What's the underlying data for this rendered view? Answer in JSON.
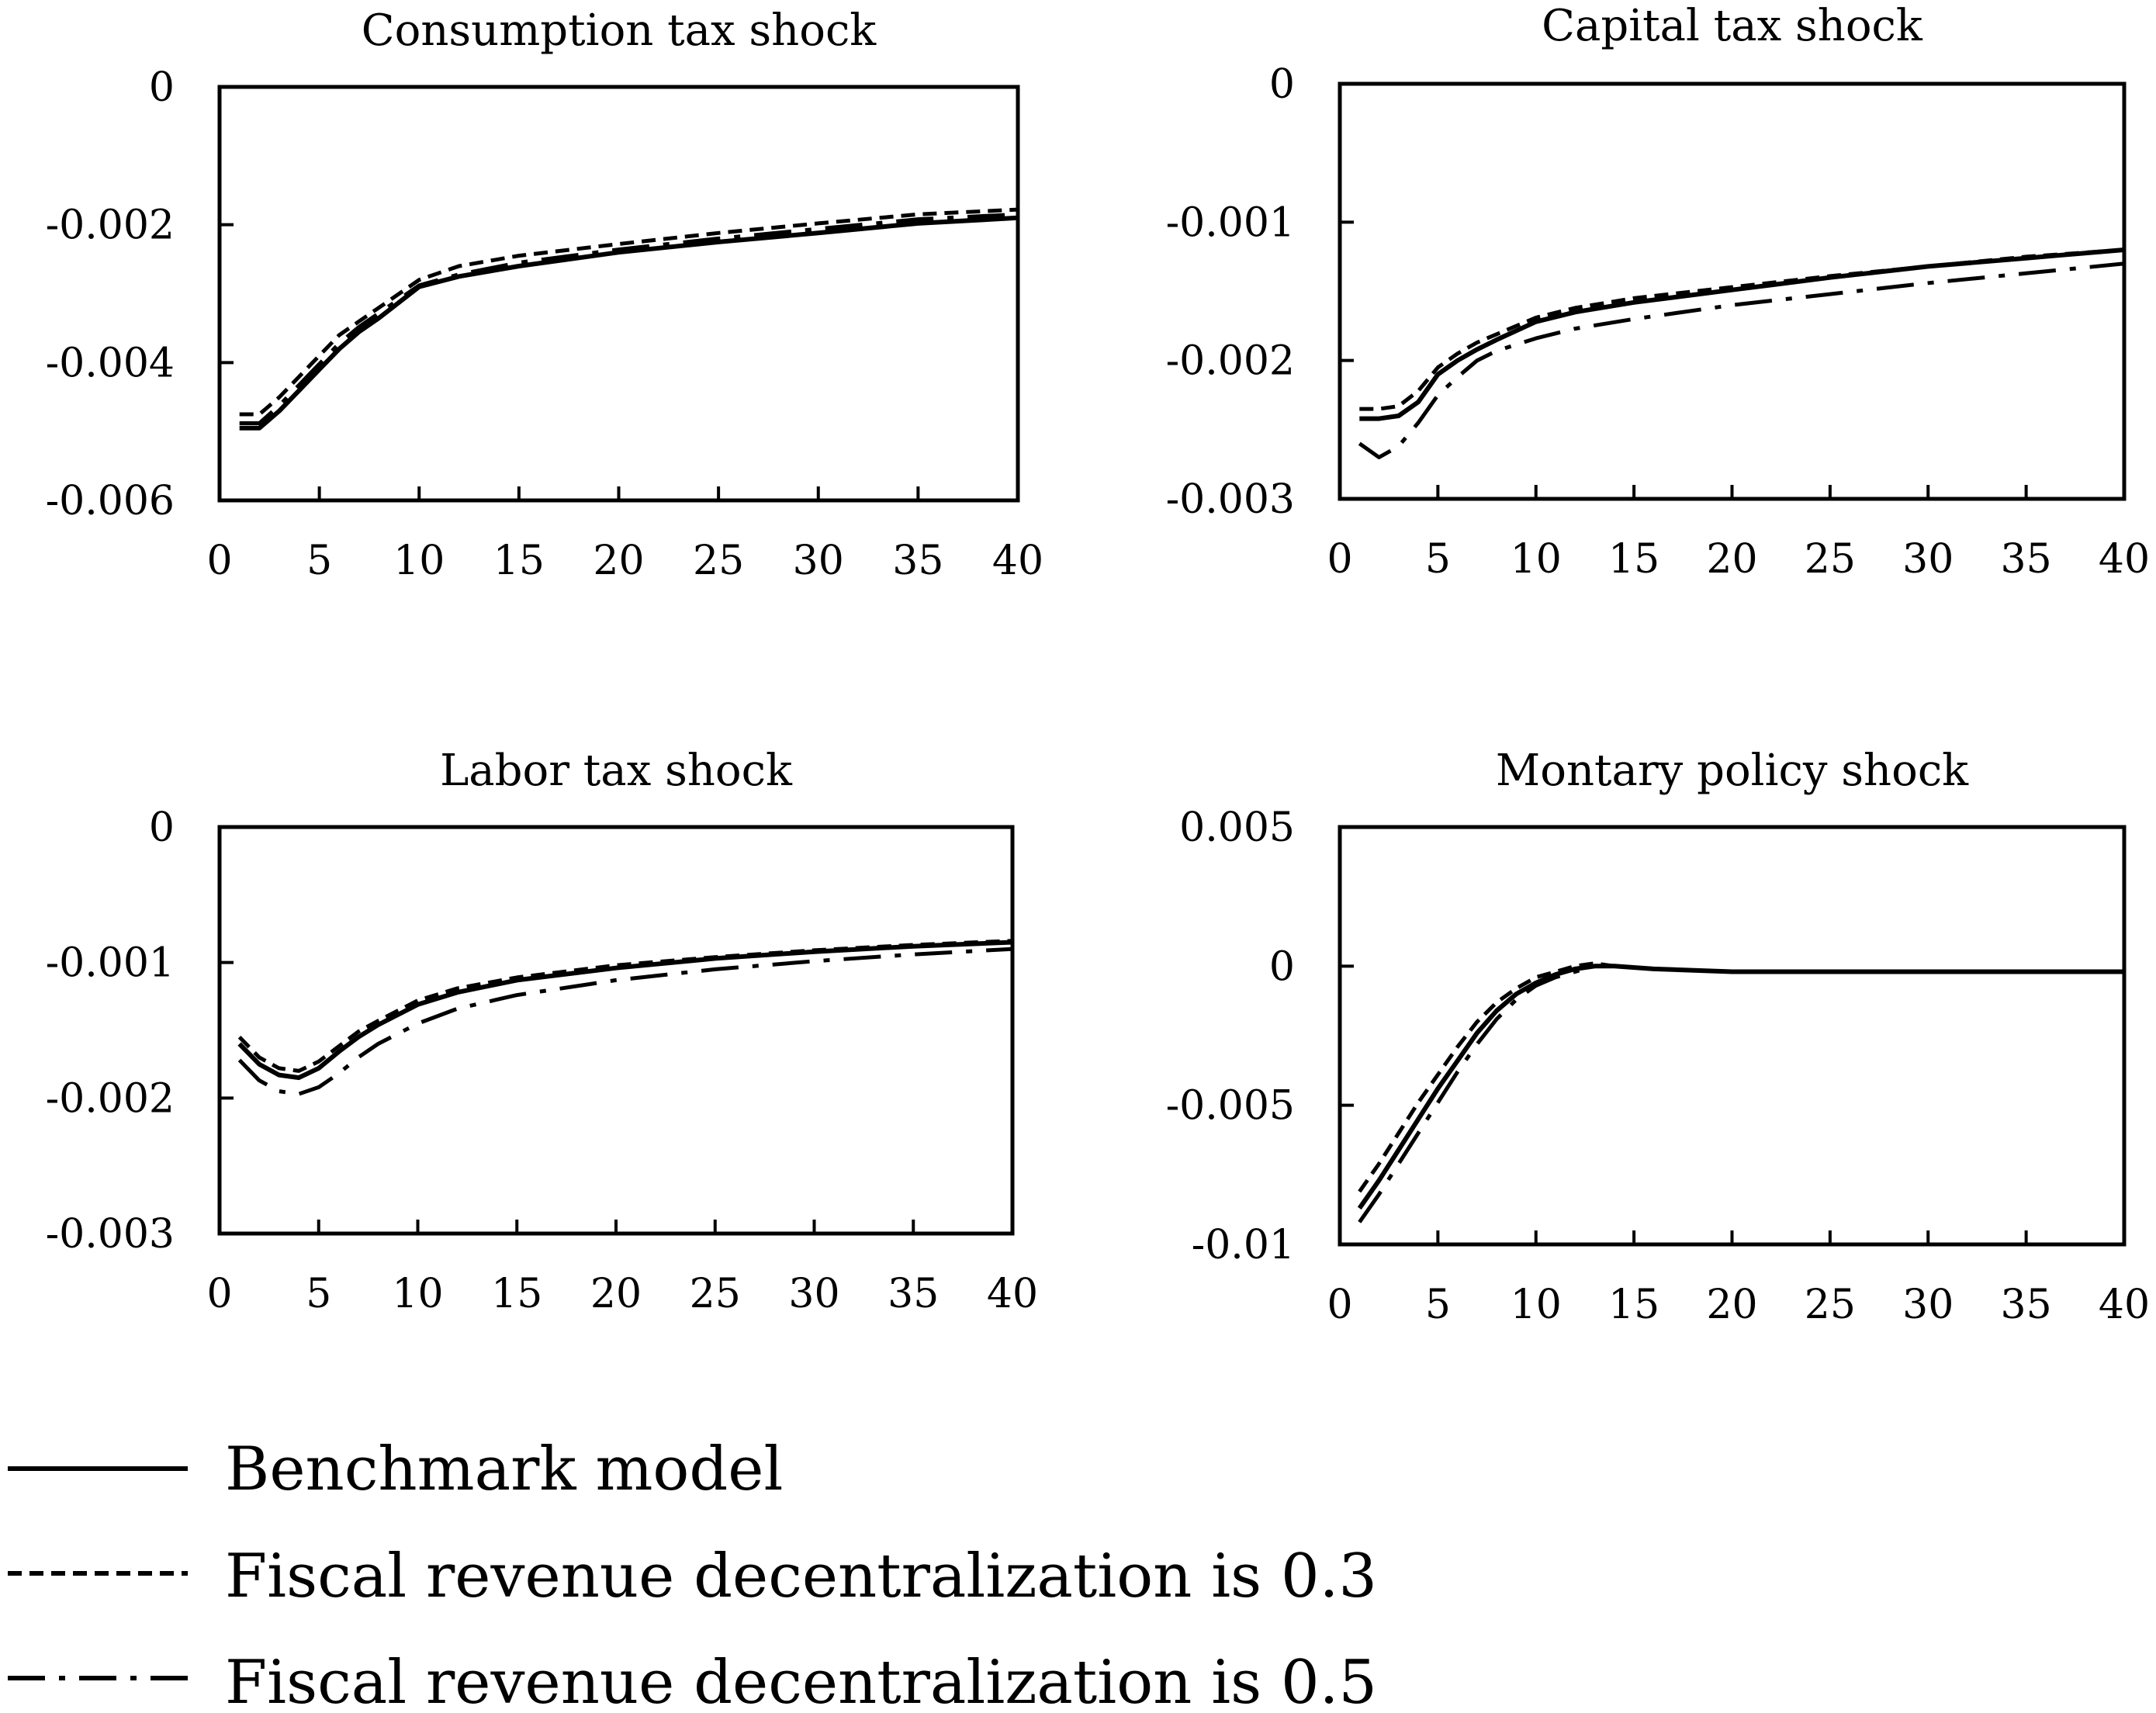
{
  "chart_data": [
    {
      "type": "line",
      "title": "Consumption tax shock",
      "xlabel": "",
      "ylabel": "",
      "xlim": [
        0,
        40
      ],
      "ylim": [
        -0.006,
        0
      ],
      "xticks": [
        0,
        5,
        10,
        15,
        20,
        25,
        30,
        35,
        40
      ],
      "yticks": [
        0,
        -0.002,
        -0.004,
        -0.006
      ],
      "xtick_labels": [
        "0",
        "5",
        "10",
        "15",
        "20",
        "25",
        "30",
        "35",
        "40"
      ],
      "ytick_labels": [
        "0",
        "-0.002",
        "-0.004",
        "-0.006"
      ],
      "x": [
        1,
        2,
        3,
        4,
        5,
        6,
        7,
        8,
        10,
        12,
        15,
        20,
        25,
        30,
        35,
        40
      ],
      "series": [
        {
          "name": "Benchmark model",
          "style": "solid",
          "values": [
            -0.00495,
            -0.00495,
            -0.0047,
            -0.0044,
            -0.0041,
            -0.0038,
            -0.00355,
            -0.00335,
            -0.0029,
            -0.00275,
            -0.0026,
            -0.0024,
            -0.00225,
            -0.00212,
            -0.00198,
            -0.0019
          ]
        },
        {
          "name": "Fiscal revenue decentralization is 0.3",
          "style": "dashed",
          "values": [
            -0.00475,
            -0.00475,
            -0.0045,
            -0.0042,
            -0.0039,
            -0.0036,
            -0.0034,
            -0.0032,
            -0.0028,
            -0.0026,
            -0.00245,
            -0.00228,
            -0.00212,
            -0.00198,
            -0.00185,
            -0.00178
          ]
        },
        {
          "name": "Fiscal revenue decentralization is 0.5",
          "style": "dashdot",
          "values": [
            -0.00488,
            -0.00488,
            -0.00462,
            -0.00432,
            -0.00402,
            -0.00372,
            -0.00348,
            -0.00328,
            -0.00288,
            -0.00272,
            -0.00255,
            -0.00236,
            -0.0022,
            -0.00206,
            -0.00192,
            -0.00185
          ]
        }
      ]
    },
    {
      "type": "line",
      "title": "Capital tax shock",
      "xlabel": "",
      "ylabel": "",
      "xlim": [
        0,
        40
      ],
      "ylim": [
        -0.003,
        0
      ],
      "xticks": [
        0,
        5,
        10,
        15,
        20,
        25,
        30,
        35,
        40
      ],
      "yticks": [
        0,
        -0.001,
        -0.002,
        -0.003
      ],
      "xtick_labels": [
        "0",
        "5",
        "10",
        "15",
        "20",
        "25",
        "30",
        "35",
        "40"
      ],
      "ytick_labels": [
        "0",
        "-0.001",
        "-0.002",
        "-0.003"
      ],
      "x": [
        1,
        2,
        3,
        4,
        5,
        6,
        7,
        8,
        10,
        12,
        15,
        20,
        25,
        30,
        35,
        40
      ],
      "series": [
        {
          "name": "Benchmark model",
          "style": "solid",
          "values": [
            -0.00242,
            -0.00242,
            -0.0024,
            -0.0023,
            -0.0021,
            -0.002,
            -0.00192,
            -0.00185,
            -0.00172,
            -0.00165,
            -0.00158,
            -0.00149,
            -0.0014,
            -0.00132,
            -0.00126,
            -0.0012
          ]
        },
        {
          "name": "Fiscal revenue decentralization is 0.3",
          "style": "dashed",
          "values": [
            -0.00235,
            -0.00235,
            -0.00233,
            -0.00222,
            -0.00205,
            -0.00195,
            -0.00187,
            -0.00181,
            -0.00169,
            -0.00162,
            -0.00155,
            -0.00147,
            -0.00139,
            -0.00132,
            -0.00125,
            -0.0012
          ]
        },
        {
          "name": "Fiscal revenue decentralization is 0.5",
          "style": "dashdot",
          "values": [
            -0.0026,
            -0.0027,
            -0.00262,
            -0.00245,
            -0.00225,
            -0.00212,
            -0.002,
            -0.00193,
            -0.00184,
            -0.00177,
            -0.0017,
            -0.0016,
            -0.00152,
            -0.00144,
            -0.00137,
            -0.0013
          ]
        }
      ]
    },
    {
      "type": "line",
      "title": "Labor tax shock",
      "xlabel": "",
      "ylabel": "",
      "xlim": [
        0,
        40
      ],
      "ylim": [
        -0.003,
        0
      ],
      "xticks": [
        0,
        5,
        10,
        15,
        20,
        25,
        30,
        35,
        40
      ],
      "yticks": [
        0,
        -0.001,
        -0.002,
        -0.003
      ],
      "xtick_labels": [
        "0",
        "5",
        "10",
        "15",
        "20",
        "25",
        "30",
        "35",
        "40"
      ],
      "ytick_labels": [
        "0",
        "-0.001",
        "-0.002",
        "-0.003"
      ],
      "x": [
        1,
        2,
        3,
        4,
        5,
        6,
        7,
        8,
        10,
        12,
        15,
        20,
        25,
        30,
        35,
        40
      ],
      "series": [
        {
          "name": "Benchmark model",
          "style": "solid",
          "values": [
            -0.0016,
            -0.00175,
            -0.00183,
            -0.00185,
            -0.00178,
            -0.00166,
            -0.00155,
            -0.00146,
            -0.00131,
            -0.00122,
            -0.00113,
            -0.00104,
            -0.00097,
            -0.00092,
            -0.00088,
            -0.00085
          ]
        },
        {
          "name": "Fiscal revenue decentralization is 0.3",
          "style": "dashed",
          "values": [
            -0.00155,
            -0.0017,
            -0.00178,
            -0.0018,
            -0.00173,
            -0.00162,
            -0.00151,
            -0.00143,
            -0.00128,
            -0.00119,
            -0.00111,
            -0.00102,
            -0.00096,
            -0.00091,
            -0.00087,
            -0.00084
          ]
        },
        {
          "name": "Fiscal revenue decentralization is 0.5",
          "style": "dashdot",
          "values": [
            -0.00172,
            -0.00187,
            -0.00195,
            -0.00197,
            -0.00192,
            -0.00182,
            -0.0017,
            -0.0016,
            -0.00145,
            -0.00134,
            -0.00124,
            -0.00113,
            -0.00105,
            -0.00099,
            -0.00094,
            -0.0009
          ]
        }
      ]
    },
    {
      "type": "line",
      "title": "Montary policy shock",
      "xlabel": "",
      "ylabel": "",
      "xlim": [
        0,
        40
      ],
      "ylim": [
        -0.01,
        0.005
      ],
      "xticks": [
        0,
        5,
        10,
        15,
        20,
        25,
        30,
        35,
        40
      ],
      "yticks": [
        0.005,
        0,
        -0.005,
        -0.01
      ],
      "xtick_labels": [
        "0",
        "5",
        "10",
        "15",
        "20",
        "25",
        "30",
        "35",
        "40"
      ],
      "ytick_labels": [
        "0.005",
        "0",
        "-0.005",
        "-0.01"
      ],
      "x": [
        1,
        2,
        3,
        4,
        5,
        6,
        7,
        8,
        9,
        10,
        11,
        12,
        13,
        14,
        16,
        20,
        25,
        30,
        35,
        40
      ],
      "series": [
        {
          "name": "Benchmark model",
          "style": "solid",
          "values": [
            -0.0087,
            -0.0077,
            -0.0066,
            -0.0055,
            -0.0044,
            -0.0034,
            -0.0024,
            -0.0016,
            -0.001,
            -0.0006,
            -0.0003,
            -0.0001,
            0.0,
            0.0,
            -0.0001,
            -0.0002,
            -0.0002,
            -0.0002,
            -0.0002,
            -0.0002
          ]
        },
        {
          "name": "Fiscal revenue decentralization is 0.3",
          "style": "dashed",
          "values": [
            -0.0081,
            -0.0071,
            -0.006,
            -0.0049,
            -0.0039,
            -0.0029,
            -0.002,
            -0.0013,
            -0.0008,
            -0.0004,
            -0.0002,
            0.0,
            0.0001,
            0.0,
            -0.0001,
            -0.0002,
            -0.0002,
            -0.0002,
            -0.0002,
            -0.0002
          ]
        },
        {
          "name": "Fiscal revenue decentralization is 0.5",
          "style": "dashdot",
          "values": [
            -0.0092,
            -0.0082,
            -0.0071,
            -0.006,
            -0.0049,
            -0.0038,
            -0.0028,
            -0.0019,
            -0.0012,
            -0.0007,
            -0.0004,
            -0.0002,
            0.0,
            0.0,
            -0.0001,
            -0.0002,
            -0.0002,
            -0.0002,
            -0.0002,
            -0.0002
          ]
        }
      ]
    }
  ],
  "legend": [
    {
      "label": "Benchmark model",
      "style": "solid"
    },
    {
      "label": "Fiscal revenue decentralization is 0.3",
      "style": "dashed"
    },
    {
      "label": "Fiscal revenue decentralization is 0.5",
      "style": "dashdot"
    }
  ]
}
